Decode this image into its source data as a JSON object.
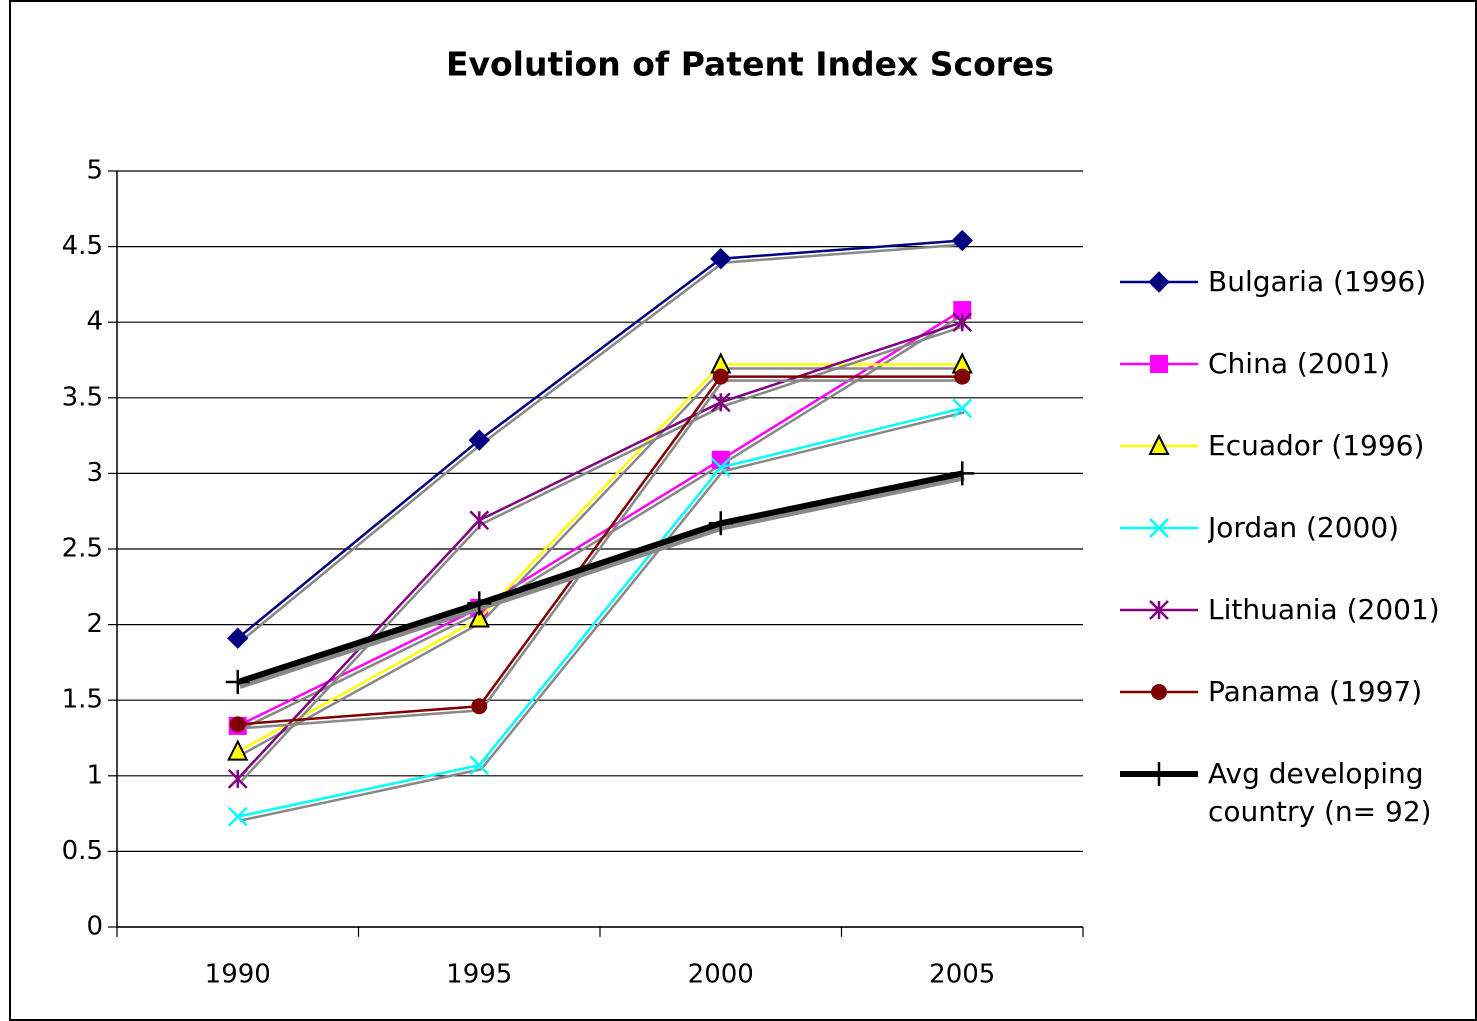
{
  "chart_data": {
    "type": "line",
    "title": "Evolution of Patent Index Scores",
    "categories": [
      "1990",
      "1995",
      "2000",
      "2005"
    ],
    "series": [
      {
        "name": "Bulgaria (1996)",
        "color": "#000080",
        "marker": "diamond",
        "values": [
          1.91,
          3.22,
          4.42,
          4.54
        ]
      },
      {
        "name": "China (2001)",
        "color": "#ff00ff",
        "marker": "square",
        "values": [
          1.33,
          2.11,
          3.09,
          4.08
        ]
      },
      {
        "name": "Ecuador (1996)",
        "color": "#ffff00",
        "marker": "triangle",
        "values": [
          1.16,
          2.04,
          3.72,
          3.72
        ]
      },
      {
        "name": "Jordan (2000)",
        "color": "#00ffff",
        "marker": "x",
        "values": [
          0.73,
          1.07,
          3.04,
          3.43
        ]
      },
      {
        "name": "Lithuania (2001)",
        "color": "#800080",
        "marker": "star",
        "values": [
          0.98,
          2.69,
          3.47,
          4.0
        ]
      },
      {
        "name": "Panama (1997)",
        "color": "#800000",
        "marker": "circle",
        "values": [
          1.34,
          1.46,
          3.64,
          3.64
        ]
      },
      {
        "name": "Avg developing country (n= 92)",
        "color": "#000000",
        "marker": "plus",
        "values": [
          1.62,
          2.14,
          2.67,
          3.0
        ]
      }
    ],
    "ylim": [
      0,
      5
    ],
    "yticks": [
      0,
      0.5,
      1,
      1.5,
      2,
      2.5,
      3,
      3.5,
      4,
      4.5,
      5
    ],
    "grid": true,
    "legend": "right"
  }
}
